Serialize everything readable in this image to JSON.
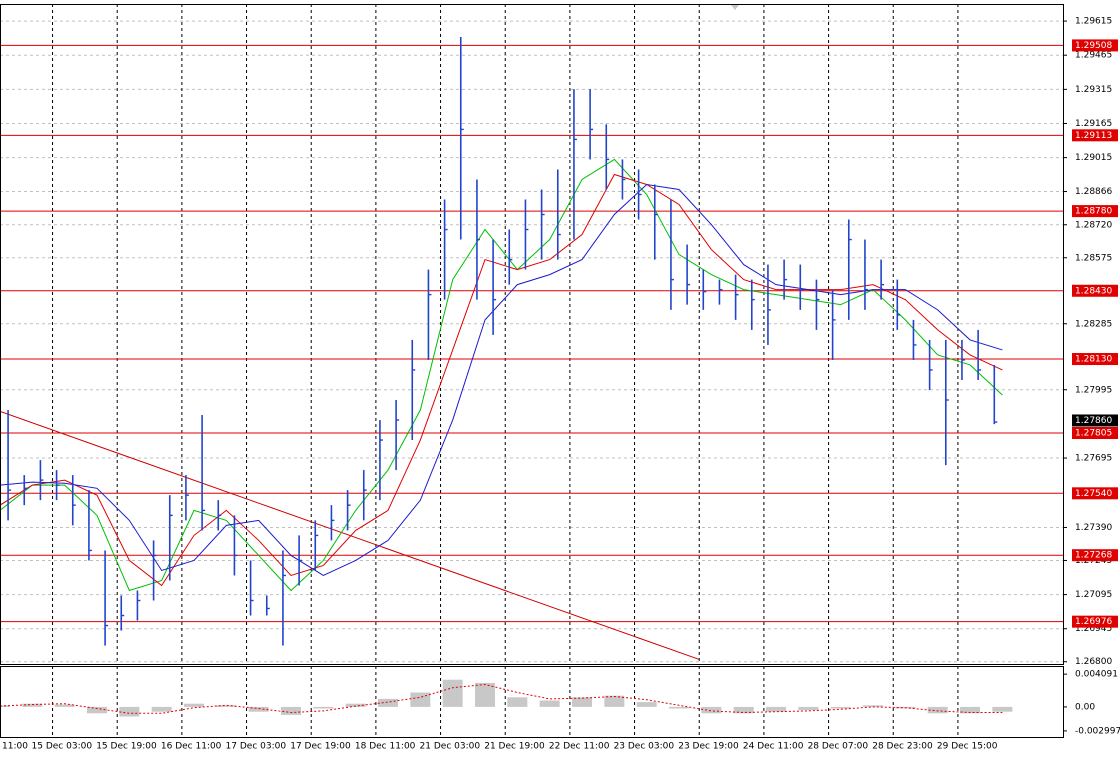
{
  "chart_data": {
    "type": "hlc",
    "color": "#2244cc",
    "grid": true,
    "xlim": [
      0,
      263
    ],
    "ylim": [
      1.2679,
      1.2969
    ],
    "xticks": [
      {
        "value": -3,
        "label": "11:00"
      },
      {
        "value": 13,
        "label": "15 Dec 03:00"
      },
      {
        "value": 29,
        "label": "15 Dec 19:00"
      },
      {
        "value": 45,
        "label": "16 Dec 11:00"
      },
      {
        "value": 61,
        "label": "17 Dec 03:00"
      },
      {
        "value": 77,
        "label": "17 Dec 19:00"
      },
      {
        "value": 93,
        "label": "18 Dec 11:00"
      },
      {
        "value": 109,
        "label": "21 Dec 03:00"
      },
      {
        "value": 125,
        "label": "21 Dec 19:00"
      },
      {
        "value": 141,
        "label": "22 Dec 11:00"
      },
      {
        "value": 157,
        "label": "23 Dec 03:00"
      },
      {
        "value": 173,
        "label": "23 Dec 19:00"
      },
      {
        "value": 189,
        "label": "24 Dec 11:00"
      },
      {
        "value": 205,
        "label": "28 Dec 07:00"
      },
      {
        "value": 221,
        "label": "28 Dec 23:00"
      },
      {
        "value": 237,
        "label": "29 Dec 15:00"
      }
    ],
    "yticks": [
      1.29615,
      1.29465,
      1.29315,
      1.29165,
      1.29015,
      1.28866,
      {
        "value": 1.2872,
        "label": "1.28720"
      },
      1.28575,
      1.28285,
      1.27995,
      1.27695,
      {
        "value": 1.2739,
        "label": "1.27390"
      },
      1.27245,
      1.27095,
      1.26945,
      {
        "value": 1.268,
        "label": "1.26800"
      }
    ],
    "x": [
      2,
      6,
      10,
      14,
      18,
      22,
      26,
      30,
      34,
      38,
      42,
      46,
      50,
      54,
      58,
      62,
      66,
      70,
      74,
      78,
      82,
      86,
      90,
      94,
      98,
      102,
      106,
      110,
      114,
      118,
      122,
      126,
      130,
      134,
      138,
      142,
      146,
      150,
      154,
      158,
      162,
      166,
      170,
      174,
      178,
      182,
      186,
      190,
      194,
      198,
      202,
      206,
      210,
      214,
      218,
      222,
      226,
      230,
      234,
      238,
      242,
      246
    ],
    "high": [
      1.27906,
      1.2762,
      1.27686,
      1.27642,
      1.2762,
      1.27554,
      1.27289,
      1.27091,
      1.27113,
      1.27333,
      1.27532,
      1.2762,
      1.27884,
      1.2751,
      1.27443,
      1.27245,
      1.27091,
      1.27289,
      1.27355,
      1.27421,
      1.27488,
      1.27554,
      1.27642,
      1.27862,
      1.2795,
      1.28214,
      1.28523,
      1.28831,
      1.29545,
      1.28919,
      1.28655,
      1.28699,
      1.28831,
      1.28875,
      1.28963,
      1.29316,
      1.29316,
      1.29161,
      1.29007,
      1.28963,
      1.28897,
      1.28831,
      1.28633,
      1.28523,
      1.28479,
      1.28501,
      1.28479,
      1.28545,
      1.28567,
      1.28545,
      1.28479,
      1.28435,
      1.28743,
      1.28655,
      1.28567,
      1.28479,
      1.28302,
      1.28214,
      1.28214,
      1.28214,
      1.28258,
      1.28104
    ],
    "low": [
      1.27421,
      1.27488,
      1.2751,
      1.2751,
      1.27399,
      1.27245,
      1.26871,
      1.26937,
      1.26981,
      1.27069,
      1.27157,
      1.27421,
      1.27377,
      1.27377,
      1.27179,
      1.27003,
      1.27003,
      1.26871,
      1.27135,
      1.27201,
      1.27333,
      1.27377,
      1.27421,
      1.2751,
      1.27642,
      1.27774,
      1.28126,
      1.28391,
      1.28655,
      1.28391,
      1.28236,
      1.28457,
      1.28523,
      1.28567,
      1.28567,
      1.28655,
      1.29007,
      1.28875,
      1.28831,
      1.28743,
      1.28567,
      1.28346,
      1.28369,
      1.28346,
      1.28369,
      1.28302,
      1.28258,
      1.28192,
      1.28391,
      1.28346,
      1.28258,
      1.28126,
      1.28302,
      1.28346,
      1.28391,
      1.28258,
      1.28126,
      1.27994,
      1.27664,
      1.28038,
      1.28038,
      1.27844
    ],
    "close": [
      1.27554,
      1.27562,
      1.27598,
      1.27576,
      1.27488,
      1.27289,
      1.26959,
      1.27003,
      1.27069,
      1.27267,
      1.27443,
      1.27532,
      1.27465,
      1.27443,
      1.27267,
      1.27069,
      1.27034,
      1.27179,
      1.27245,
      1.27355,
      1.27421,
      1.27488,
      1.27554,
      1.27774,
      1.27862,
      1.28082,
      1.28413,
      1.28699,
      1.29139,
      1.28655,
      1.28391,
      1.28567,
      1.28699,
      1.28765,
      1.28677,
      1.29095,
      1.29139,
      1.29007,
      1.28919,
      1.28853,
      1.28765,
      1.28479,
      1.28457,
      1.28426,
      1.28435,
      1.28413,
      1.28391,
      1.28346,
      1.28479,
      1.28435,
      1.28391,
      1.28302,
      1.28655,
      1.28435,
      1.28457,
      1.28324,
      1.28192,
      1.28082,
      1.2795,
      1.28126,
      1.28082,
      1.27853
    ],
    "indicator_x": [
      0,
      8,
      16,
      24,
      32,
      40,
      48,
      56,
      64,
      72,
      80,
      88,
      96,
      104,
      112,
      120,
      128,
      136,
      144,
      152,
      160,
      168,
      176,
      184,
      192,
      200,
      208,
      216,
      224,
      232,
      240,
      248
    ],
    "moving_averages": [
      {
        "color": "#00c000",
        "values": [
          1.27465,
          1.27576,
          1.27576,
          1.27443,
          1.27113,
          1.27157,
          1.27465,
          1.27421,
          1.27267,
          1.27113,
          1.27245,
          1.27465,
          1.27642,
          1.27906,
          1.28479,
          1.28699,
          1.28523,
          1.28655,
          1.28919,
          1.29007,
          1.28853,
          1.28589,
          1.28501,
          1.28435,
          1.28413,
          1.28391,
          1.28369,
          1.28435,
          1.28302,
          1.28148,
          1.28104,
          1.27972
        ]
      },
      {
        "color": "#e00000",
        "values": [
          1.27488,
          1.27576,
          1.27598,
          1.27532,
          1.27245,
          1.27135,
          1.27355,
          1.27465,
          1.27333,
          1.27179,
          1.27223,
          1.27377,
          1.27465,
          1.27774,
          1.2817,
          1.28567,
          1.28523,
          1.28567,
          1.28677,
          1.28941,
          1.28897,
          1.28809,
          1.28611,
          1.28479,
          1.28435,
          1.28435,
          1.28435,
          1.28457,
          1.28391,
          1.28258,
          1.28148,
          1.28082
        ]
      },
      {
        "color": "#1a1ad0",
        "values": [
          1.27576,
          1.27589,
          1.27584,
          1.27562,
          1.27421,
          1.27201,
          1.27245,
          1.27399,
          1.27421,
          1.27267,
          1.27179,
          1.27245,
          1.27333,
          1.2751,
          1.27862,
          1.28302,
          1.28457,
          1.28501,
          1.28567,
          1.28765,
          1.28897,
          1.28875,
          1.28721,
          1.28545,
          1.28457,
          1.28435,
          1.28413,
          1.28435,
          1.28435,
          1.28346,
          1.28214,
          1.2817
        ]
      }
    ],
    "levels": [
      1.29508,
      1.29113,
      {
        "value": 1.2878,
        "label": "1.28780"
      },
      {
        "value": 1.2843,
        "label": "1.28430"
      },
      {
        "value": 1.2813,
        "label": "1.28130"
      },
      1.27805,
      {
        "value": 1.2754,
        "label": "1.27540"
      },
      1.27268,
      1.26976
    ],
    "level_color": "#e00000",
    "trendline": {
      "x": [
        0,
        173
      ],
      "y": [
        1.279,
        1.2681
      ],
      "color": "#d00000"
    },
    "current_price": {
      "value": 1.2786,
      "label": "1.27860"
    },
    "oscillator": {
      "ylim": [
        -0.00376,
        0.00511
      ],
      "yticks": [
        0.004091,
        {
          "value": 0,
          "label": "0.00"
        },
        -0.002997
      ],
      "histogram": [
        0.0002,
        0.0004,
        0.0003,
        -0.0008,
        -0.0012,
        -0.0006,
        0.0004,
        0.0002,
        -0.0006,
        -0.001,
        -0.0002,
        0.0004,
        0.001,
        0.0018,
        0.0034,
        0.003,
        0.0012,
        0.0008,
        0.0012,
        0.0014,
        0.0006,
        -0.0002,
        -0.0008,
        -0.0008,
        -0.0006,
        -0.0004,
        -0.0002,
        0.0002,
        -0.0002,
        -0.0008,
        -0.0008,
        -0.0006
      ],
      "histogram_color": "#b0b0b0",
      "signal": [
        0.0001,
        0.0003,
        0.0004,
        -0.0002,
        -0.0008,
        -0.0008,
        -0.0001,
        0.0002,
        -0.0002,
        -0.0007,
        -0.0005,
        0.0001,
        0.0006,
        0.0012,
        0.0024,
        0.0028,
        0.0018,
        0.001,
        0.0011,
        0.0013,
        0.0009,
        0.0002,
        -0.0005,
        -0.0007,
        -0.0006,
        -0.0005,
        -0.0003,
        0,
        -0.0001,
        -0.0005,
        -0.0007,
        -0.0007
      ],
      "signal_color": "#e00000"
    }
  }
}
